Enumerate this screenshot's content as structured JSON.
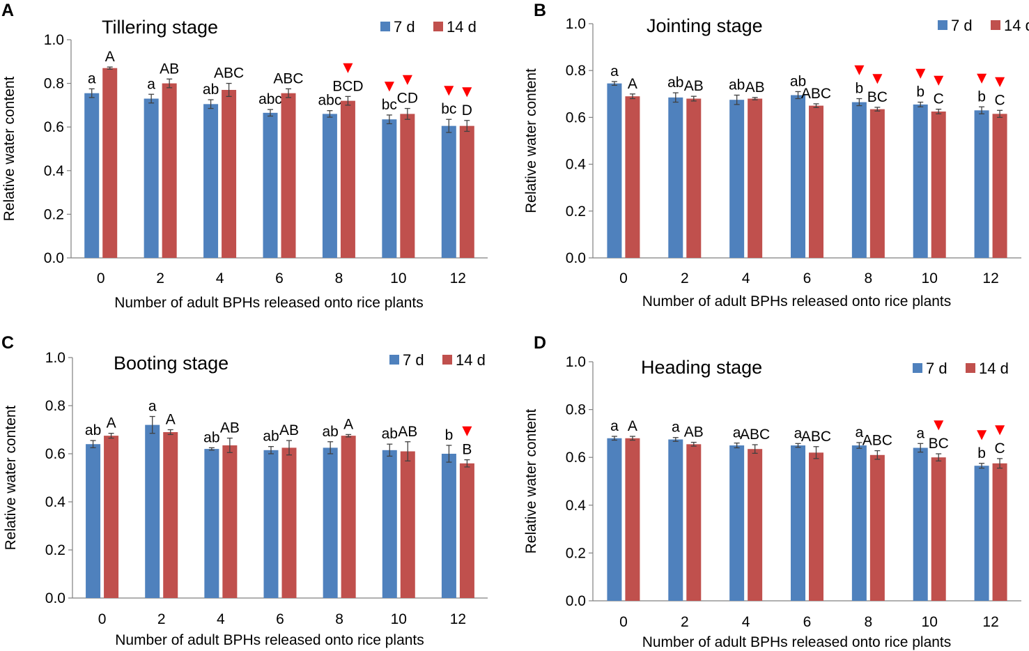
{
  "figure": {
    "colors": {
      "d7": "#4f81bd",
      "d14": "#c0504d",
      "marker": "#ff0000",
      "error": "#404040"
    },
    "marker_symbol": "▼"
  },
  "chart_data": [
    {
      "panel": "A",
      "type": "bar",
      "title": "Tillering stage",
      "xlabel": "Number of adult BPHs released onto rice plants",
      "ylabel": "Relative water content",
      "ylim": [
        0,
        1.0
      ],
      "yticks": [
        "0.0",
        "0.2",
        "0.4",
        "0.6",
        "0.8",
        "1.0"
      ],
      "categories": [
        "0",
        "2",
        "4",
        "6",
        "8",
        "10",
        "12"
      ],
      "series": [
        {
          "name": "7 d",
          "color": "#4f81bd",
          "values": [
            0.755,
            0.73,
            0.705,
            0.665,
            0.66,
            0.635,
            0.605
          ],
          "errors": [
            0.02,
            0.02,
            0.02,
            0.015,
            0.015,
            0.02,
            0.03
          ],
          "labels": [
            "a",
            "a",
            "ab",
            "abc",
            "abc",
            "bc",
            "bc"
          ],
          "markers": [
            false,
            false,
            false,
            false,
            false,
            true,
            true
          ]
        },
        {
          "name": "14 d",
          "color": "#c0504d",
          "values": [
            0.87,
            0.8,
            0.77,
            0.755,
            0.72,
            0.66,
            0.605
          ],
          "errors": [
            0.005,
            0.02,
            0.03,
            0.02,
            0.02,
            0.025,
            0.025
          ],
          "labels": [
            "A",
            "AB",
            "ABC",
            "ABC",
            "BCD",
            "CD",
            "D"
          ],
          "markers": [
            false,
            false,
            false,
            false,
            true,
            true,
            true
          ]
        }
      ]
    },
    {
      "panel": "B",
      "type": "bar",
      "title": "Jointing stage",
      "xlabel": "Number of adult BPHs released onto rice plants",
      "ylabel": "Relative water content",
      "ylim": [
        0,
        1.0
      ],
      "yticks": [
        "0.0",
        "0.2",
        "0.4",
        "0.6",
        "0.8",
        "1.0"
      ],
      "categories": [
        "0",
        "2",
        "4",
        "6",
        "8",
        "10",
        "12"
      ],
      "series": [
        {
          "name": "7 d",
          "color": "#4f81bd",
          "values": [
            0.745,
            0.685,
            0.675,
            0.695,
            0.665,
            0.655,
            0.63
          ],
          "errors": [
            0.008,
            0.02,
            0.02,
            0.015,
            0.015,
            0.01,
            0.015
          ],
          "labels": [
            "a",
            "ab",
            "ab",
            "ab",
            "b",
            "b",
            "b"
          ],
          "markers": [
            false,
            false,
            false,
            false,
            true,
            true,
            true
          ]
        },
        {
          "name": "14 d",
          "color": "#c0504d",
          "values": [
            0.69,
            0.68,
            0.68,
            0.65,
            0.635,
            0.625,
            0.615
          ],
          "errors": [
            0.01,
            0.01,
            0.005,
            0.008,
            0.008,
            0.01,
            0.015
          ],
          "labels": [
            "A",
            "AB",
            "AB",
            "ABC",
            "BC",
            "C",
            "C"
          ],
          "markers": [
            false,
            false,
            false,
            false,
            true,
            true,
            true
          ]
        }
      ]
    },
    {
      "panel": "C",
      "type": "bar",
      "title": "Booting stage",
      "xlabel": "Number of adult BPHs released onto rice plants",
      "ylabel": "Relative water content",
      "ylim": [
        0,
        1.0
      ],
      "yticks": [
        "0.0",
        "0.2",
        "0.4",
        "0.6",
        "0.8",
        "1.0"
      ],
      "categories": [
        "0",
        "2",
        "4",
        "6",
        "8",
        "10",
        "12"
      ],
      "series": [
        {
          "name": "7 d",
          "color": "#4f81bd",
          "values": [
            0.64,
            0.72,
            0.62,
            0.615,
            0.625,
            0.615,
            0.6
          ],
          "errors": [
            0.015,
            0.035,
            0.005,
            0.015,
            0.025,
            0.025,
            0.035
          ],
          "labels": [
            "ab",
            "a",
            "ab",
            "ab",
            "ab",
            "ab",
            "b"
          ],
          "markers": [
            false,
            false,
            false,
            false,
            false,
            false,
            false
          ]
        },
        {
          "name": "14 d",
          "color": "#c0504d",
          "values": [
            0.675,
            0.69,
            0.635,
            0.625,
            0.675,
            0.61,
            0.56
          ],
          "errors": [
            0.01,
            0.01,
            0.03,
            0.03,
            0.005,
            0.04,
            0.015
          ],
          "labels": [
            "A",
            "A",
            "AB",
            "AB",
            "A",
            "AB",
            "B"
          ],
          "markers": [
            false,
            false,
            false,
            false,
            false,
            false,
            true
          ]
        }
      ]
    },
    {
      "panel": "D",
      "type": "bar",
      "title": "Heading stage",
      "xlabel": "Number of adult BPHs released onto rice plants",
      "ylabel": "Relative water content",
      "ylim": [
        0,
        1.0
      ],
      "yticks": [
        "0.0",
        "0.2",
        "0.4",
        "0.6",
        "0.8",
        "1.0"
      ],
      "categories": [
        "0",
        "2",
        "4",
        "6",
        "8",
        "10",
        "12"
      ],
      "series": [
        {
          "name": "7 d",
          "color": "#4f81bd",
          "values": [
            0.68,
            0.675,
            0.65,
            0.65,
            0.65,
            0.64,
            0.565
          ],
          "errors": [
            0.008,
            0.008,
            0.01,
            0.008,
            0.012,
            0.018,
            0.01
          ],
          "labels": [
            "a",
            "a",
            "a",
            "a",
            "a",
            "a",
            "b"
          ],
          "markers": [
            false,
            false,
            false,
            false,
            false,
            false,
            true
          ]
        },
        {
          "name": "14 d",
          "color": "#c0504d",
          "values": [
            0.68,
            0.655,
            0.635,
            0.62,
            0.61,
            0.6,
            0.575
          ],
          "errors": [
            0.008,
            0.008,
            0.018,
            0.025,
            0.018,
            0.015,
            0.02
          ],
          "labels": [
            "A",
            "AB",
            "ABC",
            "ABC",
            "ABC",
            "BC",
            "C"
          ],
          "markers": [
            false,
            false,
            false,
            false,
            false,
            true,
            true
          ]
        }
      ]
    }
  ]
}
